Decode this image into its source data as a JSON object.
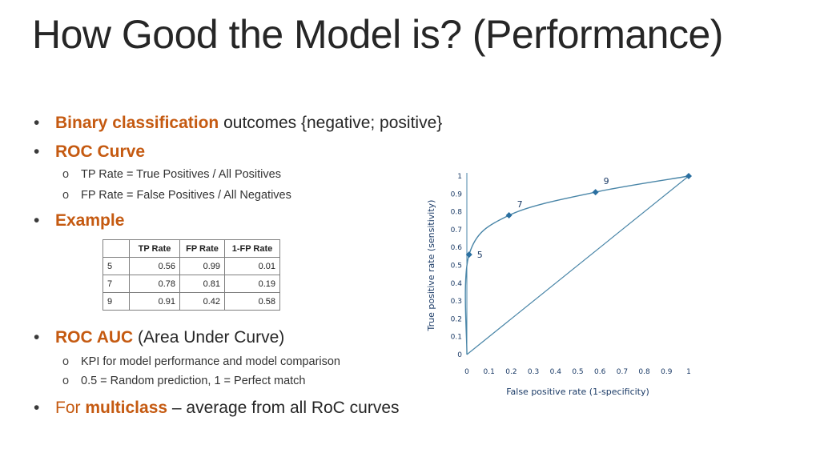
{
  "slide": {
    "title": "How Good the Model is? (Performance)"
  },
  "bullets": {
    "b1": {
      "bold": "Binary classification",
      "rest": " outcomes {negative; positive}"
    },
    "b2": {
      "bold": "ROC Curve"
    },
    "b2_subs": [
      "TP Rate = True Positives / All Positives",
      "FP Rate = False Positives / All Negatives"
    ],
    "b3": {
      "bold": "Example"
    },
    "b4": {
      "bold": "ROC AUC",
      "rest": " (Area Under Curve)"
    },
    "b4_subs": [
      "KPI for model performance and model comparison",
      "0.5 = Random prediction, 1 = Perfect match"
    ],
    "b5": {
      "pre": "For ",
      "bold": "multiclass",
      "rest": " – average from all RoC curves"
    },
    "bullet_char": "•",
    "sub_char": "o"
  },
  "table": {
    "headers": [
      "",
      "TP Rate",
      "FP Rate",
      "1-FP Rate"
    ],
    "rows": [
      [
        "5",
        "0.56",
        "0.99",
        "0.01"
      ],
      [
        "7",
        "0.78",
        "0.81",
        "0.19"
      ],
      [
        "9",
        "0.91",
        "0.42",
        "0.58"
      ]
    ]
  },
  "colors": {
    "accent": "#c55a11",
    "curve": "#4a86a8",
    "axis_text": "#1a3a66"
  },
  "chart_data": {
    "type": "line",
    "xlabel": "False positive rate (1-specificity)",
    "ylabel": "True positive rate (sensitivity)",
    "xlim": [
      0,
      1
    ],
    "ylim": [
      0,
      1
    ],
    "x_ticks": [
      "0",
      "0.1",
      "0.2",
      "0.3",
      "0.4",
      "0.5",
      "0.6",
      "0.7",
      "0.8",
      "0.9",
      "1"
    ],
    "y_ticks": [
      "0",
      "0.1",
      "0.2",
      "0.3",
      "0.4",
      "0.5",
      "0.6",
      "0.7",
      "0.8",
      "0.9",
      "1"
    ],
    "series": [
      {
        "x": [
          0,
          0.01,
          0.19,
          0.58,
          1.0
        ],
        "y": [
          0,
          0.56,
          0.78,
          0.91,
          1.0
        ]
      },
      {
        "x": [
          0,
          1
        ],
        "y": [
          0,
          1
        ]
      }
    ],
    "point_labels": [
      {
        "text": "5",
        "x": 0.01,
        "y": 0.56
      },
      {
        "text": "7",
        "x": 0.19,
        "y": 0.78
      },
      {
        "text": "9",
        "x": 0.58,
        "y": 0.91
      }
    ],
    "grid": false
  }
}
